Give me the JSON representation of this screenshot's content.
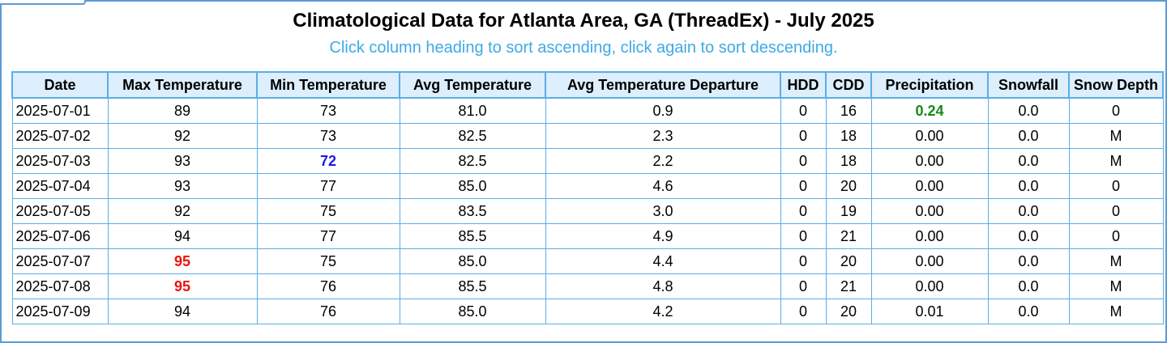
{
  "title": "Climatological Data for Atlanta Area, GA (ThreadEx) - July 2025",
  "subtitle": "Click column heading to sort ascending, click again to sort descending.",
  "table": {
    "columns": [
      "Date",
      "Max Temperature",
      "Min Temperature",
      "Avg Temperature",
      "Avg Temperature Departure",
      "HDD",
      "CDD",
      "Precipitation",
      "Snowfall",
      "Snow Depth"
    ],
    "rows": [
      [
        "2025-07-01",
        "89",
        "73",
        "81.0",
        "0.9",
        "0",
        "16",
        "0.24",
        "0.0",
        "0"
      ],
      [
        "2025-07-02",
        "92",
        "73",
        "82.5",
        "2.3",
        "0",
        "18",
        "0.00",
        "0.0",
        "M"
      ],
      [
        "2025-07-03",
        "93",
        "72",
        "82.5",
        "2.2",
        "0",
        "18",
        "0.00",
        "0.0",
        "M"
      ],
      [
        "2025-07-04",
        "93",
        "77",
        "85.0",
        "4.6",
        "0",
        "20",
        "0.00",
        "0.0",
        "0"
      ],
      [
        "2025-07-05",
        "92",
        "75",
        "83.5",
        "3.0",
        "0",
        "19",
        "0.00",
        "0.0",
        "0"
      ],
      [
        "2025-07-06",
        "94",
        "77",
        "85.5",
        "4.9",
        "0",
        "21",
        "0.00",
        "0.0",
        "0"
      ],
      [
        "2025-07-07",
        "95",
        "75",
        "85.0",
        "4.4",
        "0",
        "20",
        "0.00",
        "0.0",
        "M"
      ],
      [
        "2025-07-08",
        "95",
        "76",
        "85.5",
        "4.8",
        "0",
        "21",
        "0.00",
        "0.0",
        "M"
      ],
      [
        "2025-07-09",
        "94",
        "76",
        "85.0",
        "4.2",
        "0",
        "20",
        "0.01",
        "0.0",
        "M"
      ]
    ],
    "highlights": [
      {
        "row": 0,
        "col": 7,
        "color": "green"
      },
      {
        "row": 2,
        "col": 2,
        "color": "blue"
      },
      {
        "row": 6,
        "col": 1,
        "color": "red"
      },
      {
        "row": 7,
        "col": 1,
        "color": "red"
      }
    ]
  },
  "colors": {
    "border": "#5aaee6",
    "header_bg": "#ddeefc",
    "subtitle": "#3fa9e6",
    "max_highlight": "#ee1111",
    "min_highlight": "#1a1aee",
    "precip_highlight": "#178a17"
  }
}
